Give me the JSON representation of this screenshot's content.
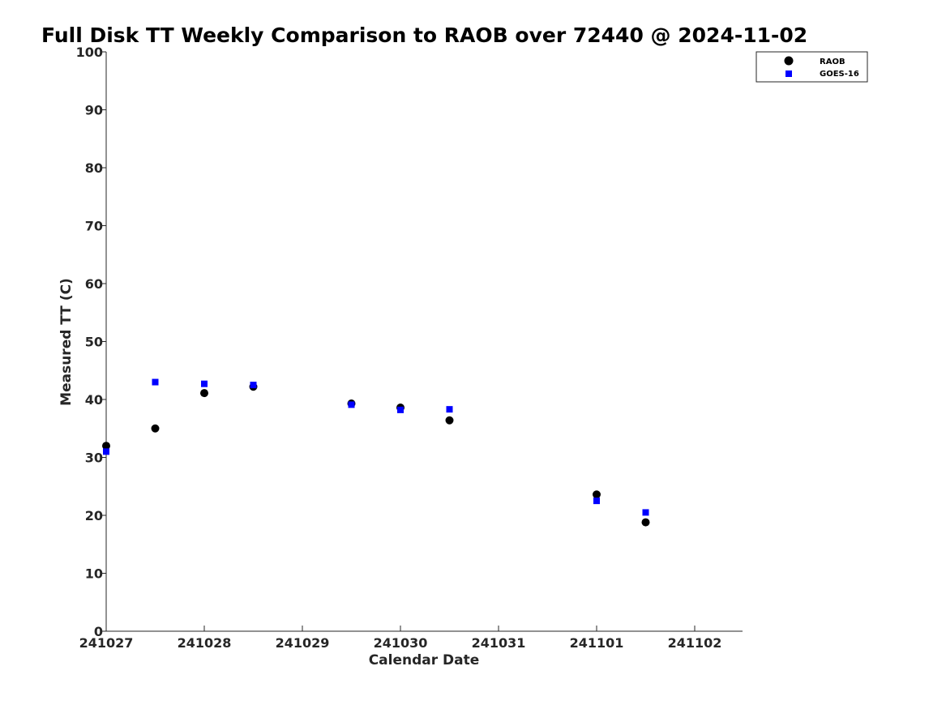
{
  "chart_data": {
    "type": "scatter",
    "title": "Full Disk TT Weekly Comparison to RAOB over 72440 @ 2024-11-02",
    "xlabel": "Calendar Date",
    "ylabel": "Measured TT (C)",
    "x_ticks": [
      "241027",
      "241028",
      "241029",
      "241030",
      "241031",
      "241101",
      "241102"
    ],
    "y_ticks": [
      "0",
      "10",
      "20",
      "30",
      "40",
      "50",
      "60",
      "70",
      "80",
      "90",
      "100"
    ],
    "xlim": [
      "2024-10-27",
      "2024-11-02 12:00"
    ],
    "ylim": [
      0,
      100
    ],
    "grid": false,
    "legend_position": "top-right",
    "series": [
      {
        "name": "RAOB",
        "marker": "circle",
        "color": "#000000",
        "x": [
          "2024-10-27 00:00",
          "2024-10-27 12:00",
          "2024-10-28 00:00",
          "2024-10-28 12:00",
          "2024-10-29 12:00",
          "2024-10-30 00:00",
          "2024-10-30 12:00",
          "2024-11-01 00:00",
          "2024-11-01 12:00"
        ],
        "y": [
          32.0,
          35.0,
          41.1,
          42.2,
          39.3,
          38.6,
          36.4,
          23.6,
          18.8
        ]
      },
      {
        "name": "GOES-16",
        "marker": "square",
        "color": "#0000ff",
        "x": [
          "2024-10-27 00:00",
          "2024-10-27 12:00",
          "2024-10-28 00:00",
          "2024-10-28 12:00",
          "2024-10-29 12:00",
          "2024-10-30 00:00",
          "2024-10-30 12:00",
          "2024-11-01 00:00",
          "2024-11-01 12:00"
        ],
        "y": [
          31.0,
          43.0,
          42.7,
          42.5,
          39.1,
          38.2,
          38.3,
          22.5,
          20.5
        ]
      }
    ]
  }
}
